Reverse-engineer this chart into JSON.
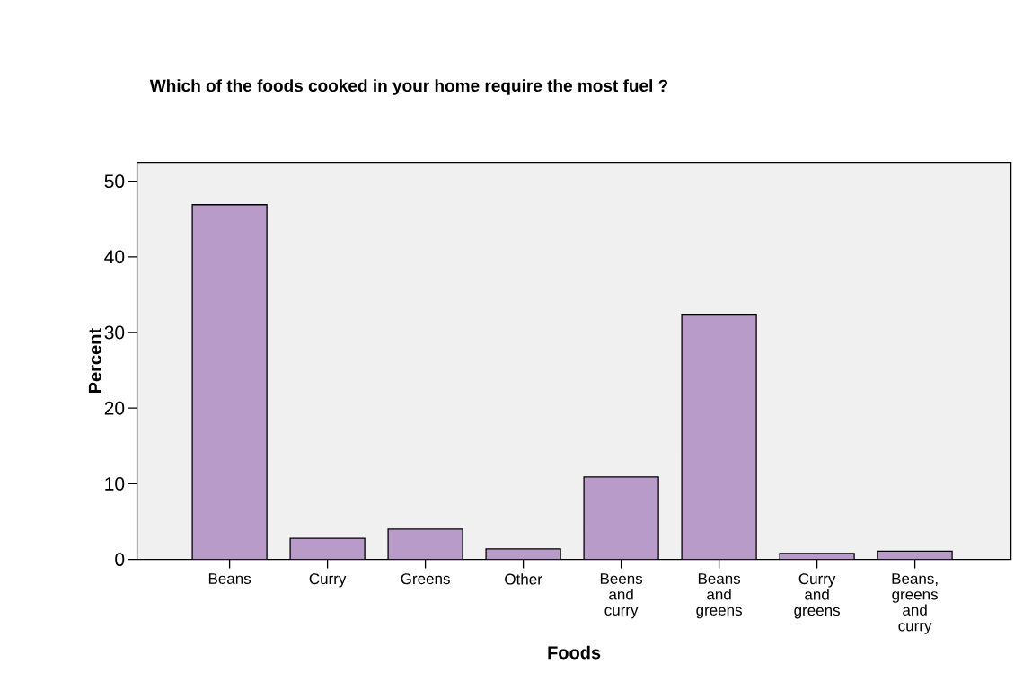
{
  "chart_data": {
    "type": "bar",
    "title": "Which of the foods cooked in your home require the most fuel ?",
    "xlabel": "Foods",
    "ylabel": "Percent",
    "categories": [
      "Beans",
      "Curry",
      "Greens",
      "Other",
      "Beens and curry",
      "Beans and greens",
      "Curry and greens",
      "Beans, greens and curry"
    ],
    "values": [
      46.9,
      2.8,
      4.0,
      1.4,
      10.9,
      32.3,
      0.8,
      1.1
    ],
    "color": "#b89bc9",
    "ylim": [
      0,
      52.5
    ],
    "yticks": [
      0,
      10,
      20,
      30,
      40,
      50
    ],
    "grid": false
  }
}
